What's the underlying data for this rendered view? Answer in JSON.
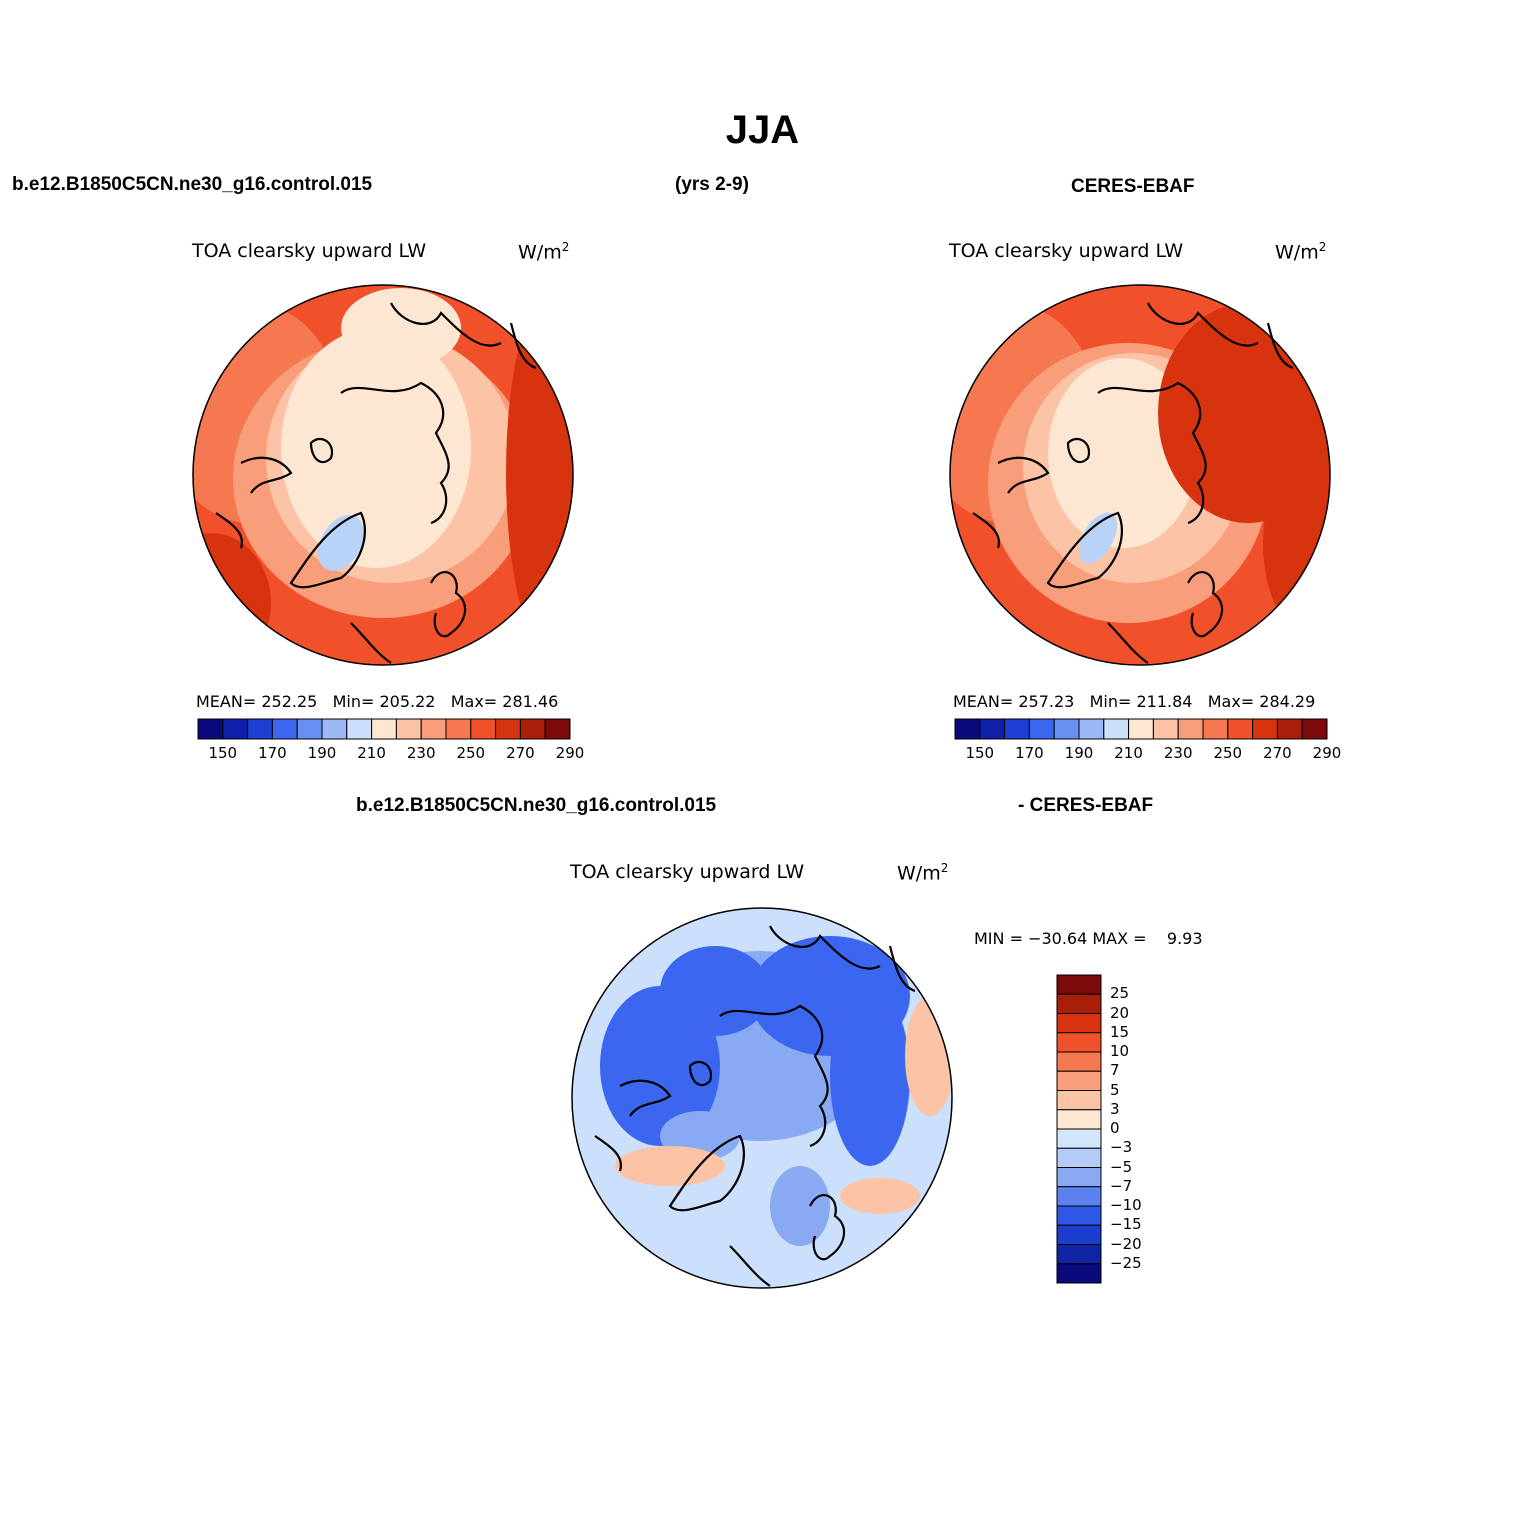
{
  "figure": {
    "season": "JJA",
    "case_name": "b.e12.B1850C5CN.ne30_g16.control.015",
    "years": "(yrs 2-9)",
    "obs_name": "CERES-EBAF",
    "diff_case_name": "b.e12.B1850C5CN.ne30_g16.control.015",
    "diff_obs_name": "- CERES-EBAF"
  },
  "panels": {
    "model": {
      "variable": "TOA clearsky upward LW",
      "units": "W/m",
      "units_sup": "2",
      "stats": {
        "mean_label": "MEAN=",
        "mean": "252.25",
        "min_label": "Min=",
        "min": "205.22",
        "max_label": "Max=",
        "max": "281.46"
      }
    },
    "obs": {
      "variable": "TOA clearsky upward LW",
      "units": "W/m",
      "units_sup": "2",
      "stats": {
        "mean_label": "MEAN=",
        "mean": "257.23",
        "min_label": "Min=",
        "min": "211.84",
        "max_label": "Max=",
        "max": "284.29"
      }
    },
    "diff": {
      "variable": "TOA clearsky upward LW",
      "units": "W/m",
      "units_sup": "2",
      "minmax_text": "MIN = −30.64 MAX =    9.93"
    }
  },
  "colorbars": {
    "abs": {
      "colors": [
        "#0a0a7d",
        "#0f1fa8",
        "#1e3fd4",
        "#3b66f0",
        "#6690f2",
        "#9bb8f5",
        "#cce0fb",
        "#fde6d2",
        "#fcc3a6",
        "#f99e7a",
        "#f57850",
        "#f0502a",
        "#d8330f",
        "#a81e08",
        "#7d0a0a"
      ],
      "labels": [
        "150",
        "170",
        "190",
        "210",
        "230",
        "250",
        "270",
        "290"
      ]
    },
    "diff": {
      "colors": [
        "#7d0a0a",
        "#a81e08",
        "#d8330f",
        "#f0502a",
        "#f57850",
        "#f99e7a",
        "#fcc3a6",
        "#fde6d2",
        "#d4e6fb",
        "#b3ccf7",
        "#89aaf3",
        "#5b82ef",
        "#3058e6",
        "#1a3dcd",
        "#0f23a6",
        "#0a0a7d"
      ],
      "labels": [
        "25",
        "20",
        "15",
        "10",
        "7",
        "5",
        "3",
        "0",
        "−3",
        "−5",
        "−7",
        "−10",
        "−15",
        "−20",
        "−25"
      ]
    }
  },
  "map_colors": {
    "model_base": "#f0502a",
    "model_warm": "#f57850",
    "model_ring": "#f99e7a",
    "model_cool": "#fcc3a6",
    "model_cold": "#fde6d2",
    "model_ice": "#b9d3f8",
    "model_hot": "#d8330f",
    "diff_base": "#cce0fb",
    "diff_mid": "#89aaf3",
    "diff_strong": "#3b66f0",
    "diff_pos": "#fcc3a6",
    "coast": "#000000"
  }
}
